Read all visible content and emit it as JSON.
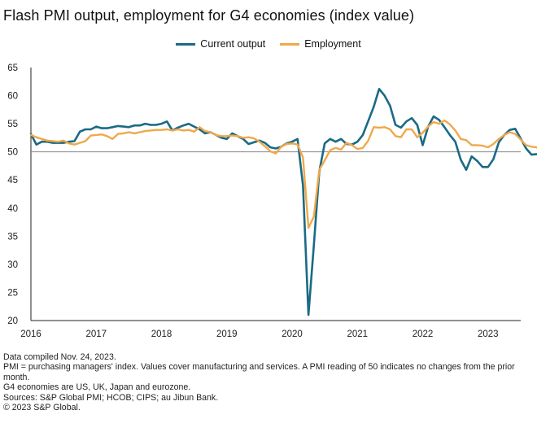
{
  "title": "Flash PMI output, employment for G4 economies (index value)",
  "colors": {
    "output": "#1a6a85",
    "employment": "#f0a84a",
    "axis": "#222222",
    "reference": "#888888"
  },
  "notes": [
    "Data compiled Nov. 24, 2023.",
    "PMI = purchasing managers' index. Values cover manufacturing and services. A PMI reading of 50 indicates no changes from the prior month.",
    "G4 economies are US, UK, Japan and eurozone.",
    "Sources: S&P Global PMI; HCOB; CIPS; au Jibun Bank.",
    "© 2023 S&P Global."
  ],
  "chart_data": {
    "type": "line",
    "title": "Flash PMI output, employment for G4 economies (index value)",
    "xlabel": "",
    "ylabel": "",
    "ylim": [
      20,
      65
    ],
    "yticks": [
      20,
      25,
      30,
      35,
      40,
      45,
      50,
      55,
      60,
      65
    ],
    "xticks": [
      "2016",
      "2017",
      "2018",
      "2019",
      "2020",
      "2021",
      "2022",
      "2023"
    ],
    "xlim": [
      "2016-01",
      "2023-11"
    ],
    "reference_line": 50,
    "grid": false,
    "legend": "top-center",
    "series": [
      {
        "name": "Current output",
        "color": "#1a6a85",
        "points": [
          [
            "2016-01",
            53.2
          ],
          [
            "2016-02",
            51.3
          ],
          [
            "2016-03",
            51.8
          ],
          [
            "2016-04",
            51.8
          ],
          [
            "2016-05",
            51.6
          ],
          [
            "2016-06",
            51.6
          ],
          [
            "2016-07",
            51.6
          ],
          [
            "2016-08",
            51.8
          ],
          [
            "2016-09",
            51.9
          ],
          [
            "2016-10",
            53.6
          ],
          [
            "2016-11",
            54.0
          ],
          [
            "2016-12",
            54.0
          ],
          [
            "2017-01",
            54.5
          ],
          [
            "2017-02",
            54.2
          ],
          [
            "2017-03",
            54.2
          ],
          [
            "2017-04",
            54.4
          ],
          [
            "2017-05",
            54.6
          ],
          [
            "2017-06",
            54.5
          ],
          [
            "2017-07",
            54.4
          ],
          [
            "2017-08",
            54.7
          ],
          [
            "2017-09",
            54.7
          ],
          [
            "2017-10",
            55.0
          ],
          [
            "2017-11",
            54.8
          ],
          [
            "2017-12",
            54.8
          ],
          [
            "2018-01",
            55.0
          ],
          [
            "2018-02",
            55.4
          ],
          [
            "2018-03",
            53.8
          ],
          [
            "2018-04",
            54.3
          ],
          [
            "2018-05",
            54.7
          ],
          [
            "2018-06",
            55.0
          ],
          [
            "2018-07",
            54.5
          ],
          [
            "2018-08",
            54.0
          ],
          [
            "2018-09",
            53.3
          ],
          [
            "2018-10",
            53.5
          ],
          [
            "2018-11",
            53.0
          ],
          [
            "2018-12",
            52.5
          ],
          [
            "2019-01",
            52.3
          ],
          [
            "2019-02",
            53.3
          ],
          [
            "2019-03",
            52.8
          ],
          [
            "2019-04",
            52.3
          ],
          [
            "2019-05",
            51.4
          ],
          [
            "2019-06",
            51.7
          ],
          [
            "2019-07",
            52.0
          ],
          [
            "2019-08",
            51.6
          ],
          [
            "2019-09",
            50.8
          ],
          [
            "2019-10",
            50.6
          ],
          [
            "2019-11",
            50.9
          ],
          [
            "2019-12",
            51.5
          ],
          [
            "2020-01",
            51.8
          ],
          [
            "2020-02",
            52.3
          ],
          [
            "2020-03",
            44.0
          ],
          [
            "2020-04",
            21.0
          ],
          [
            "2020-05",
            33.5
          ],
          [
            "2020-06",
            46.5
          ],
          [
            "2020-07",
            51.5
          ],
          [
            "2020-08",
            52.3
          ],
          [
            "2020-09",
            51.8
          ],
          [
            "2020-10",
            52.3
          ],
          [
            "2020-11",
            51.4
          ],
          [
            "2020-12",
            51.3
          ],
          [
            "2021-01",
            51.8
          ],
          [
            "2021-02",
            53.0
          ],
          [
            "2021-03",
            55.5
          ],
          [
            "2021-04",
            58.0
          ],
          [
            "2021-05",
            61.2
          ],
          [
            "2021-06",
            60.0
          ],
          [
            "2021-07",
            58.2
          ],
          [
            "2021-08",
            54.8
          ],
          [
            "2021-09",
            54.3
          ],
          [
            "2021-10",
            55.4
          ],
          [
            "2021-11",
            56.0
          ],
          [
            "2021-12",
            54.8
          ],
          [
            "2022-01",
            51.2
          ],
          [
            "2022-02",
            54.5
          ],
          [
            "2022-03",
            56.3
          ],
          [
            "2022-04",
            55.7
          ],
          [
            "2022-05",
            54.4
          ],
          [
            "2022-06",
            53.0
          ],
          [
            "2022-07",
            51.8
          ],
          [
            "2022-08",
            48.6
          ],
          [
            "2022-09",
            46.8
          ],
          [
            "2022-10",
            49.2
          ],
          [
            "2022-11",
            48.4
          ],
          [
            "2022-12",
            47.3
          ],
          [
            "2023-01",
            47.3
          ],
          [
            "2023-02",
            48.7
          ],
          [
            "2023-03",
            51.7
          ],
          [
            "2023-04",
            53.0
          ],
          [
            "2023-05",
            53.9
          ],
          [
            "2023-06",
            54.1
          ],
          [
            "2023-07",
            52.4
          ],
          [
            "2023-08",
            50.6
          ],
          [
            "2023-09",
            49.5
          ],
          [
            "2023-10",
            49.6
          ],
          [
            "2023-11",
            49.6
          ]
        ]
      },
      {
        "name": "Employment",
        "color": "#f0a84a",
        "points": [
          [
            "2016-01",
            53.0
          ],
          [
            "2016-02",
            52.6
          ],
          [
            "2016-03",
            52.3
          ],
          [
            "2016-04",
            52.0
          ],
          [
            "2016-05",
            51.9
          ],
          [
            "2016-06",
            51.8
          ],
          [
            "2016-07",
            52.0
          ],
          [
            "2016-08",
            51.5
          ],
          [
            "2016-09",
            51.3
          ],
          [
            "2016-10",
            51.6
          ],
          [
            "2016-11",
            51.9
          ],
          [
            "2016-12",
            52.9
          ],
          [
            "2017-01",
            53.0
          ],
          [
            "2017-02",
            53.1
          ],
          [
            "2017-03",
            52.8
          ],
          [
            "2017-04",
            52.3
          ],
          [
            "2017-05",
            53.2
          ],
          [
            "2017-06",
            53.3
          ],
          [
            "2017-07",
            53.5
          ],
          [
            "2017-08",
            53.3
          ],
          [
            "2017-09",
            53.5
          ],
          [
            "2017-10",
            53.7
          ],
          [
            "2017-11",
            53.8
          ],
          [
            "2017-12",
            53.9
          ],
          [
            "2018-01",
            53.9
          ],
          [
            "2018-02",
            54.0
          ],
          [
            "2018-03",
            53.8
          ],
          [
            "2018-04",
            54.0
          ],
          [
            "2018-05",
            53.8
          ],
          [
            "2018-06",
            53.9
          ],
          [
            "2018-07",
            53.6
          ],
          [
            "2018-08",
            54.4
          ],
          [
            "2018-09",
            53.7
          ],
          [
            "2018-10",
            53.5
          ],
          [
            "2018-11",
            53.0
          ],
          [
            "2018-12",
            52.8
          ],
          [
            "2019-01",
            52.8
          ],
          [
            "2019-02",
            52.9
          ],
          [
            "2019-03",
            52.8
          ],
          [
            "2019-04",
            52.5
          ],
          [
            "2019-05",
            52.6
          ],
          [
            "2019-06",
            52.4
          ],
          [
            "2019-07",
            51.8
          ],
          [
            "2019-08",
            51.0
          ],
          [
            "2019-09",
            50.1
          ],
          [
            "2019-10",
            49.7
          ],
          [
            "2019-11",
            50.9
          ],
          [
            "2019-12",
            51.4
          ],
          [
            "2020-01",
            51.5
          ],
          [
            "2020-02",
            51.3
          ],
          [
            "2020-03",
            49.0
          ],
          [
            "2020-04",
            36.5
          ],
          [
            "2020-05",
            38.5
          ],
          [
            "2020-06",
            46.8
          ],
          [
            "2020-07",
            48.5
          ],
          [
            "2020-08",
            50.3
          ],
          [
            "2020-09",
            50.7
          ],
          [
            "2020-10",
            50.4
          ],
          [
            "2020-11",
            51.6
          ],
          [
            "2020-12",
            51.2
          ],
          [
            "2021-01",
            50.5
          ],
          [
            "2021-02",
            50.7
          ],
          [
            "2021-03",
            52.0
          ],
          [
            "2021-04",
            54.4
          ],
          [
            "2021-05",
            54.3
          ],
          [
            "2021-06",
            54.4
          ],
          [
            "2021-07",
            54.0
          ],
          [
            "2021-08",
            52.8
          ],
          [
            "2021-09",
            52.6
          ],
          [
            "2021-10",
            54.0
          ],
          [
            "2021-11",
            54.0
          ],
          [
            "2021-12",
            52.6
          ],
          [
            "2022-01",
            53.4
          ],
          [
            "2022-02",
            54.5
          ],
          [
            "2022-03",
            55.3
          ],
          [
            "2022-04",
            55.0
          ],
          [
            "2022-05",
            55.6
          ],
          [
            "2022-06",
            54.9
          ],
          [
            "2022-07",
            53.8
          ],
          [
            "2022-08",
            52.3
          ],
          [
            "2022-09",
            52.1
          ],
          [
            "2022-10",
            51.2
          ],
          [
            "2022-11",
            51.2
          ],
          [
            "2022-12",
            51.1
          ],
          [
            "2023-01",
            50.8
          ],
          [
            "2023-02",
            51.4
          ],
          [
            "2023-03",
            52.3
          ],
          [
            "2023-04",
            53.0
          ],
          [
            "2023-05",
            53.5
          ],
          [
            "2023-06",
            53.2
          ],
          [
            "2023-07",
            52.2
          ],
          [
            "2023-08",
            51.2
          ],
          [
            "2023-09",
            50.9
          ],
          [
            "2023-10",
            50.8
          ],
          [
            "2023-11",
            49.4
          ]
        ]
      }
    ]
  }
}
